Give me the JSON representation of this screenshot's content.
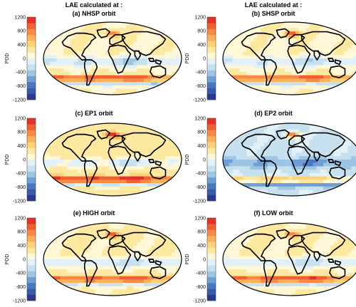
{
  "figure": {
    "colorbar": {
      "label": "PDD",
      "ticks": [
        "1200",
        "800",
        "400",
        "0",
        "-400",
        "-800",
        "-1200"
      ],
      "tick_values": [
        1200,
        800,
        400,
        0,
        -400,
        -800,
        -1200
      ],
      "range": [
        -1200,
        1200
      ],
      "colors": [
        "#2b3990",
        "#3a5aa8",
        "#4a78bf",
        "#6e9ed2",
        "#9cc4e3",
        "#c6e0ef",
        "#e2f0f7",
        "#fff7d6",
        "#fde8a0",
        "#fdd07a",
        "#fbb05a",
        "#f78a44",
        "#ef6033",
        "#e0342a"
      ]
    },
    "panels": [
      {
        "id": "a",
        "header": "LAE calculated at :",
        "title": "(a) NHSP orbit",
        "variant": "a"
      },
      {
        "id": "b",
        "header": "LAE calculated at :",
        "title": "(b) SHSP orbit",
        "variant": "b"
      },
      {
        "id": "c",
        "header": "",
        "title": "(c) EP1 orbit",
        "variant": "c"
      },
      {
        "id": "d",
        "header": "",
        "title": "(d) EP2 orbit",
        "variant": "d"
      },
      {
        "id": "e",
        "header": "",
        "title": "(e) HIGH orbit",
        "variant": "e"
      },
      {
        "id": "f",
        "header": "",
        "title": "(f) LOW orbit",
        "variant": "f"
      }
    ]
  }
}
